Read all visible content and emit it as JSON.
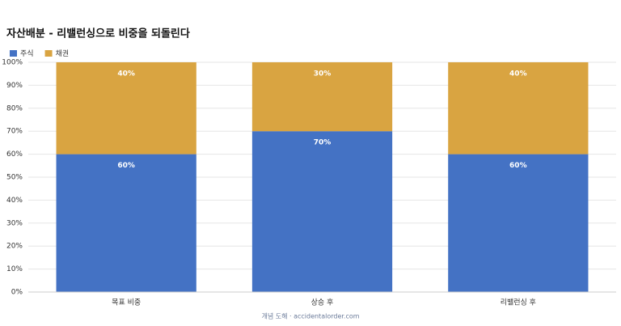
{
  "chart_data": {
    "type": "stacked_bar",
    "title": "자산배분 - 리밸런싱으로 비중을 되돌린다",
    "categories": [
      "목표 비중",
      "상승 후",
      "리밸런싱 후"
    ],
    "series": [
      {
        "name": "주식",
        "color": "#4472c4",
        "values": [
          60,
          70,
          60
        ],
        "value_labels": [
          "60%",
          "70%",
          "60%"
        ]
      },
      {
        "name": "채권",
        "color": "#d9a441",
        "values": [
          40,
          30,
          40
        ],
        "value_labels": [
          "40%",
          "30%",
          "40%"
        ]
      }
    ],
    "ylim": [
      0,
      100
    ],
    "yticks": [
      {
        "value": 0,
        "label": "0%"
      },
      {
        "value": 10,
        "label": "10%"
      },
      {
        "value": 20,
        "label": "20%"
      },
      {
        "value": 30,
        "label": "30%"
      },
      {
        "value": 40,
        "label": "40%"
      },
      {
        "value": 50,
        "label": "50%"
      },
      {
        "value": 60,
        "label": "60%"
      },
      {
        "value": 70,
        "label": "70%"
      },
      {
        "value": 80,
        "label": "80%"
      },
      {
        "value": 90,
        "label": "90%"
      },
      {
        "value": 100,
        "label": "100%"
      }
    ],
    "grid": true,
    "legend": "top-left",
    "footer": "개념 도해 · accidentalorder.com"
  }
}
